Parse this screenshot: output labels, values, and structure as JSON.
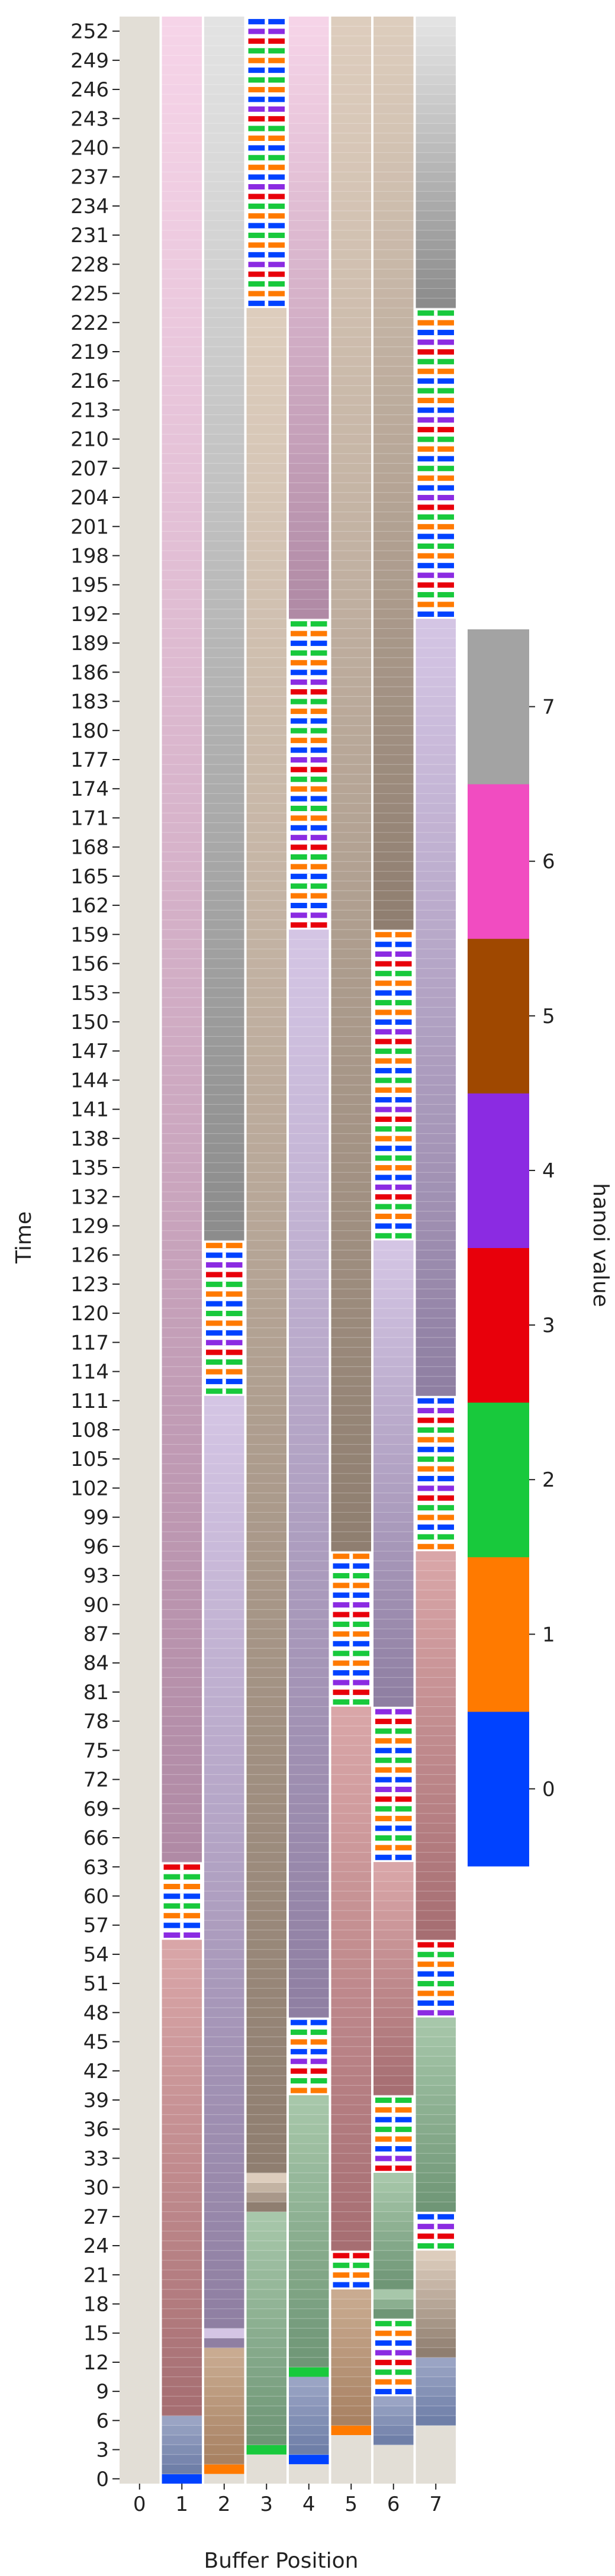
{
  "chart_data": {
    "type": "heatmap",
    "title": "",
    "xlabel": "Buffer Position",
    "ylabel": "Time",
    "x_categories": [
      "0",
      "1",
      "2",
      "3",
      "4",
      "5",
      "6",
      "7"
    ],
    "y_range": [
      0,
      254
    ],
    "y_ticks": [
      "0",
      "3",
      "6",
      "9",
      "12",
      "15",
      "18",
      "21",
      "24",
      "27",
      "30",
      "33",
      "36",
      "39",
      "42",
      "45",
      "48",
      "51",
      "54",
      "57",
      "60",
      "63",
      "66",
      "69",
      "72",
      "75",
      "78",
      "81",
      "84",
      "87",
      "90",
      "93",
      "96",
      "99",
      "102",
      "105",
      "108",
      "111",
      "114",
      "117",
      "120",
      "123",
      "126",
      "129",
      "132",
      "135",
      "138",
      "141",
      "144",
      "147",
      "150",
      "153",
      "156",
      "159",
      "162",
      "165",
      "168",
      "171",
      "174",
      "177",
      "180",
      "183",
      "186",
      "189",
      "192",
      "195",
      "198",
      "201",
      "204",
      "207",
      "210",
      "213",
      "216",
      "219",
      "222",
      "225",
      "228",
      "231",
      "234",
      "237",
      "240",
      "243",
      "246",
      "249",
      "252"
    ],
    "colorbar": {
      "label": "hanoi value",
      "ticks": [
        "0",
        "1",
        "2",
        "3",
        "4",
        "5",
        "6",
        "7"
      ],
      "colors": [
        "#0042ff",
        "#ff7a00",
        "#18c93c",
        "#e8000b",
        "#8b2be2",
        "#9f4800",
        "#f14cc1",
        "#a3a3a3"
      ]
    },
    "note_encoding": "rows t=0..254; values 0-7 per buffer position; striped blocks are element transfers",
    "columns": [
      {
        "position": "0",
        "segments": [
          {
            "from": 0,
            "to": 254,
            "value": "empty"
          }
        ]
      },
      {
        "position": "1",
        "segments": [
          {
            "from": 0,
            "to": 1,
            "value": 0
          },
          {
            "from": 1,
            "to": 7,
            "value": 0
          },
          {
            "from": 7,
            "to": 56,
            "value": 3
          },
          {
            "from": 56,
            "to": 64,
            "value": "transfer"
          },
          {
            "from": 64,
            "to": 254,
            "value": 6
          }
        ]
      },
      {
        "position": "2",
        "segments": [
          {
            "from": 0,
            "to": 1,
            "value": "empty"
          },
          {
            "from": 1,
            "to": 2,
            "value": 1
          },
          {
            "from": 2,
            "to": 14,
            "value": 1
          },
          {
            "from": 14,
            "to": 16,
            "value": 4
          },
          {
            "from": 16,
            "to": 112,
            "value": 4
          },
          {
            "from": 112,
            "to": 128,
            "value": "transfer"
          },
          {
            "from": 128,
            "to": 254,
            "value": 7
          }
        ]
      },
      {
        "position": "3",
        "segments": [
          {
            "from": 0,
            "to": 3,
            "value": "empty"
          },
          {
            "from": 3,
            "to": 4,
            "value": 2
          },
          {
            "from": 4,
            "to": 28,
            "value": 2
          },
          {
            "from": 28,
            "to": 32,
            "value": 5
          },
          {
            "from": 32,
            "to": 224,
            "value": 5
          },
          {
            "from": 224,
            "to": 254,
            "value": "transfer"
          }
        ]
      },
      {
        "position": "4",
        "segments": [
          {
            "from": 0,
            "to": 2,
            "value": "empty"
          },
          {
            "from": 2,
            "to": 3,
            "value": 0
          },
          {
            "from": 3,
            "to": 11,
            "value": 0
          },
          {
            "from": 11,
            "to": 12,
            "value": 2
          },
          {
            "from": 12,
            "to": 40,
            "value": 2
          },
          {
            "from": 40,
            "to": 48,
            "value": "transfer"
          },
          {
            "from": 48,
            "to": 160,
            "value": 4
          },
          {
            "from": 160,
            "to": 192,
            "value": "transfer"
          },
          {
            "from": 192,
            "to": 254,
            "value": 6
          }
        ]
      },
      {
        "position": "5",
        "segments": [
          {
            "from": 0,
            "to": 5,
            "value": "empty"
          },
          {
            "from": 5,
            "to": 6,
            "value": 1
          },
          {
            "from": 6,
            "to": 20,
            "value": 1
          },
          {
            "from": 20,
            "to": 24,
            "value": "transfer"
          },
          {
            "from": 24,
            "to": 80,
            "value": 3
          },
          {
            "from": 80,
            "to": 96,
            "value": "transfer"
          },
          {
            "from": 96,
            "to": 254,
            "value": 5
          }
        ]
      },
      {
        "position": "6",
        "segments": [
          {
            "from": 0,
            "to": 4,
            "value": "empty"
          },
          {
            "from": 4,
            "to": 9,
            "value": 0
          },
          {
            "from": 9,
            "to": 17,
            "value": "transfer"
          },
          {
            "from": 17,
            "to": 20,
            "value": 2
          },
          {
            "from": 20,
            "to": 32,
            "value": 2
          },
          {
            "from": 32,
            "to": 40,
            "value": "transfer"
          },
          {
            "from": 40,
            "to": 64,
            "value": 3
          },
          {
            "from": 64,
            "to": 80,
            "value": "transfer"
          },
          {
            "from": 80,
            "to": 128,
            "value": 4
          },
          {
            "from": 128,
            "to": 160,
            "value": "transfer"
          },
          {
            "from": 160,
            "to": 254,
            "value": 5
          }
        ]
      },
      {
        "position": "7",
        "segments": [
          {
            "from": 0,
            "to": 6,
            "value": "empty"
          },
          {
            "from": 6,
            "to": 13,
            "value": 0
          },
          {
            "from": 13,
            "to": 24,
            "value": 5
          },
          {
            "from": 24,
            "to": 28,
            "value": "transfer"
          },
          {
            "from": 28,
            "to": 48,
            "value": 2
          },
          {
            "from": 48,
            "to": 56,
            "value": "transfer"
          },
          {
            "from": 56,
            "to": 96,
            "value": 3
          },
          {
            "from": 96,
            "to": 112,
            "value": "transfer"
          },
          {
            "from": 112,
            "to": 192,
            "value": 4
          },
          {
            "from": 192,
            "to": 224,
            "value": "transfer"
          },
          {
            "from": 224,
            "to": 254,
            "value": 7
          }
        ]
      }
    ]
  }
}
